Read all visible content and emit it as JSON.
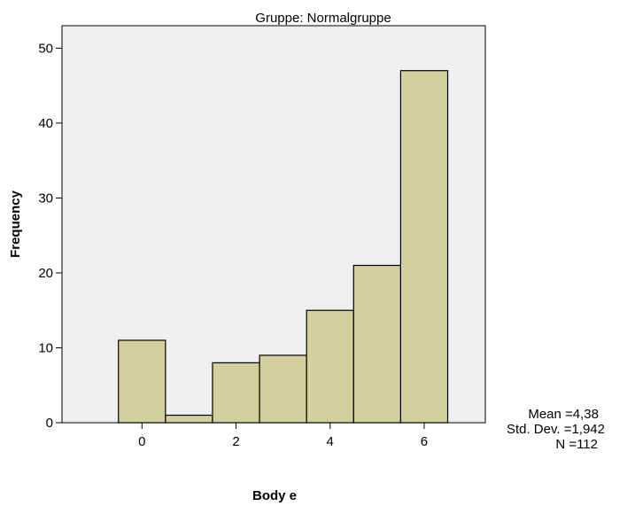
{
  "chart_data": {
    "type": "bar",
    "title": "Gruppe: Normalgruppe",
    "xlabel": "Body e",
    "ylabel": "Frequency",
    "bins": [
      {
        "center": 0,
        "value": 11
      },
      {
        "center": 1,
        "value": 1
      },
      {
        "center": 2,
        "value": 8
      },
      {
        "center": 3,
        "value": 9
      },
      {
        "center": 4,
        "value": 15
      },
      {
        "center": 5,
        "value": 21
      },
      {
        "center": 6,
        "value": 47
      }
    ],
    "bin_width": 1,
    "xlim": [
      -1.7,
      7.3
    ],
    "ylim": [
      0,
      53
    ],
    "xticks": [
      "0",
      "2",
      "4",
      "6"
    ],
    "xtick_values": [
      0,
      2,
      4,
      6
    ],
    "yticks": [
      "0",
      "10",
      "20",
      "30",
      "40",
      "50"
    ],
    "ytick_values": [
      0,
      10,
      20,
      30,
      40,
      50
    ],
    "grid": false,
    "bar_color": "#d3d09e",
    "plot_background": "#efefef",
    "stats": {
      "mean": "Mean =4,38",
      "std": "Std. Dev. =1,942",
      "n": "N =112"
    }
  }
}
